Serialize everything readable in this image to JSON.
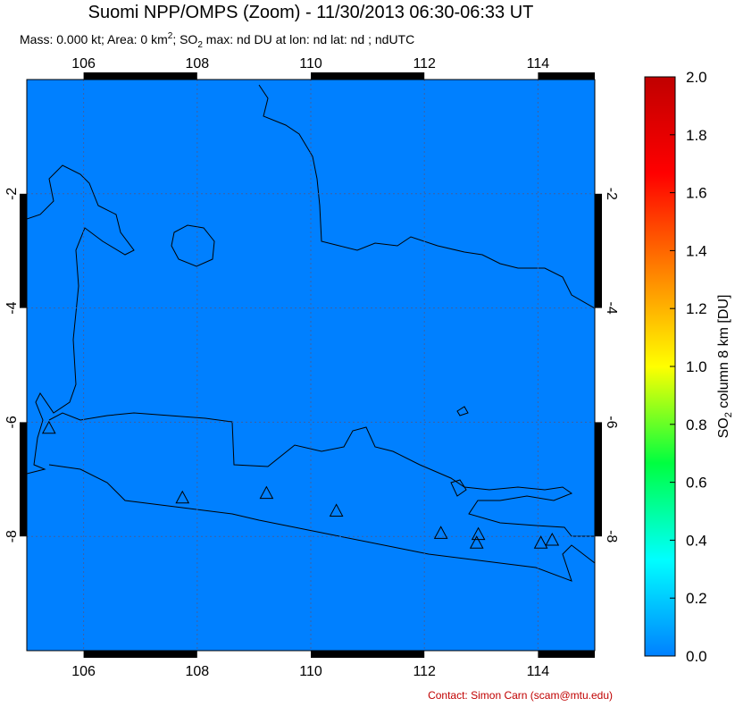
{
  "header": {
    "title": "Suomi NPP/OMPS (Zoom) - 11/30/2013 06:30-06:33 UT",
    "subtitle": [
      "Mass: 0.000 kt; Area: 0 km",
      "2",
      "; SO",
      "2",
      " max: nd DU at lon: nd lat: nd ; ndUTC"
    ]
  },
  "chart_data": {
    "type": "map",
    "xlim": [
      105,
      115
    ],
    "ylim": [
      -10,
      0
    ],
    "xticks": [
      106,
      108,
      110,
      112,
      114
    ],
    "yticks": [
      -2,
      -4,
      -6,
      -8
    ],
    "grid": true,
    "background_color": "#0080ff",
    "coast_color": "#000000",
    "volcanoes": {
      "lon": [
        105.39,
        107.74,
        109.22,
        110.45,
        112.29,
        112.95,
        112.92,
        114.05,
        114.25
      ],
      "lat": [
        -6.1,
        -7.32,
        -7.24,
        -7.55,
        -7.94,
        -7.96,
        -8.11,
        -8.11,
        -8.06
      ]
    },
    "colorbar": {
      "label": [
        "SO",
        "2",
        " column 8 km [DU]"
      ],
      "lim": [
        0,
        2
      ],
      "ticks": [
        {
          "value": 0,
          "label": "0.0"
        },
        0.2,
        0.4,
        0.6,
        0.8,
        {
          "value": 1,
          "label": "1.0"
        },
        1.2,
        1.4,
        1.6,
        1.8,
        {
          "value": 2,
          "label": "2.0"
        }
      ],
      "colors": [
        "#0080ff",
        "#00ffff",
        "#00ff40",
        "#ffff00",
        "#ff8000",
        "#ff0000",
        "#c00000"
      ]
    }
  },
  "footer": {
    "contact": "Contact: Simon Carn (scam@mtu.edu)"
  }
}
